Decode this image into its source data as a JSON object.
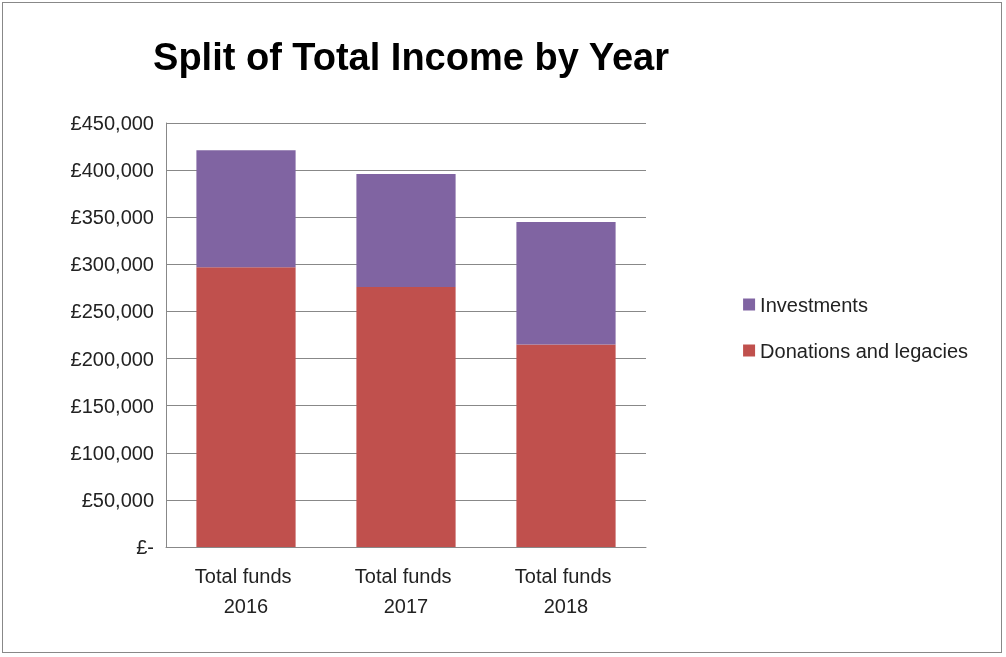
{
  "chart_data": {
    "type": "bar",
    "title": "Split of Total Income by Year",
    "categories": [
      "Total funds 2016",
      "Total funds 2017",
      "Total funds 2018"
    ],
    "series": [
      {
        "name": "Donations and legacies",
        "color": "#c0504d",
        "values": [
          297000,
          276000,
          215000
        ]
      },
      {
        "name": "Investments",
        "color": "#8064a2",
        "values": [
          124000,
          120000,
          130000
        ]
      }
    ],
    "stacked": true,
    "ylim": [
      0,
      450000
    ],
    "yticks": [
      {
        "value": 0,
        "label": "£-"
      },
      {
        "value": 50000,
        "label": "£50,000"
      },
      {
        "value": 100000,
        "label": "£100,000"
      },
      {
        "value": 150000,
        "label": "£150,000"
      },
      {
        "value": 200000,
        "label": "£200,000"
      },
      {
        "value": 250000,
        "label": "£250,000"
      },
      {
        "value": 300000,
        "label": "£300,000"
      },
      {
        "value": 350000,
        "label": "£350,000"
      },
      {
        "value": 400000,
        "label": "£400,000"
      },
      {
        "value": 450000,
        "label": "£450,000"
      }
    ],
    "grid": "y",
    "legend": "right"
  }
}
